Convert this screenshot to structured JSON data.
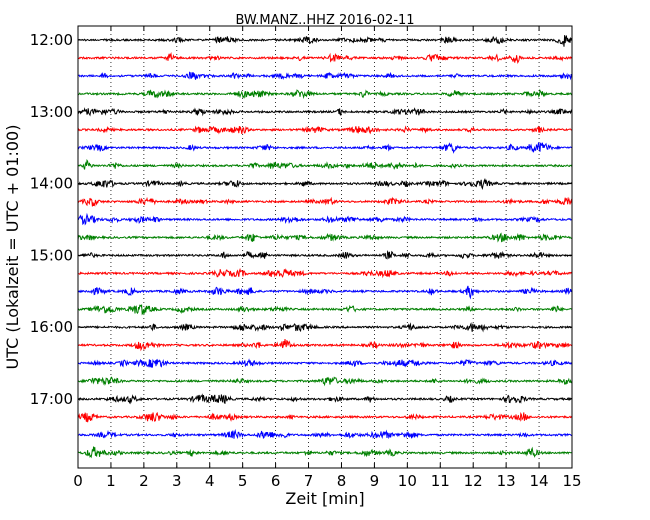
{
  "chart_data": {
    "type": "line",
    "title": "BW.MANZ..HHZ 2016-02-11",
    "xlabel": "Zeit  [min]",
    "ylabel": "UTC (Lokalzeit = UTC + 01:00)",
    "xlim": [
      0,
      15
    ],
    "x_ticks": [
      "0",
      "1",
      "2",
      "3",
      "4",
      "5",
      "6",
      "7",
      "8",
      "9",
      "10",
      "11",
      "12",
      "13",
      "14",
      "15"
    ],
    "y_ticks": [
      "12:00",
      "13:00",
      "14:00",
      "15:00",
      "16:00",
      "17:00"
    ],
    "vertical_grid": "dotted at each minute",
    "trace_interval_minutes": 15,
    "start_time": "12:00",
    "trace_count": 24,
    "trace_colors": [
      "#000000",
      "#ff0000",
      "#0000ff",
      "#008000"
    ]
  }
}
